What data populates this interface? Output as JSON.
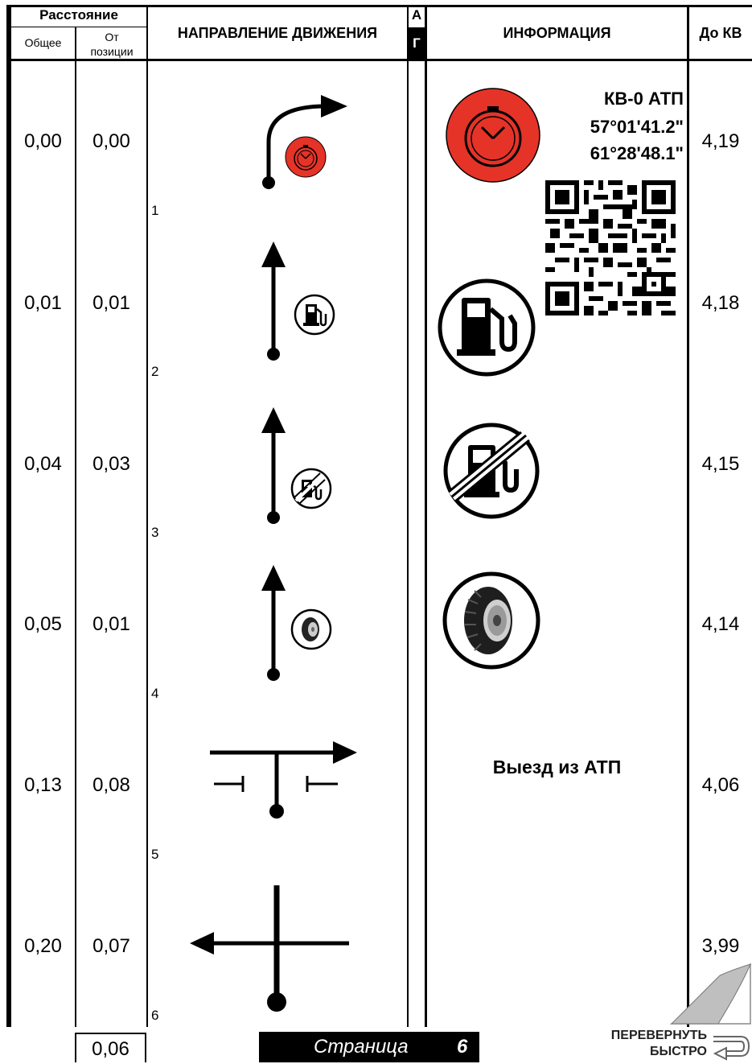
{
  "header": {
    "distance": "Расстояние",
    "total": "Общее",
    "from_position": "От позиции",
    "direction": "НАПРАВЛЕНИЕ ДВИЖЕНИЯ",
    "ag_top": "А",
    "ag_bottom": "Г",
    "info": "ИНФОРМАЦИЯ",
    "to_kv": "До КВ"
  },
  "rows": [
    {
      "n": "1",
      "total": "0,00",
      "from": "0,00",
      "to_kv": "4,19",
      "icon": "stopwatch-icon"
    },
    {
      "n": "2",
      "total": "0,01",
      "from": "0,01",
      "to_kv": "4,18",
      "icon": "fuel-pump-icon"
    },
    {
      "n": "3",
      "total": "0,04",
      "from": "0,03",
      "to_kv": "4,15",
      "icon": "no-fuel-icon"
    },
    {
      "n": "4",
      "total": "0,05",
      "from": "0,01",
      "to_kv": "4,14",
      "icon": "tire-icon"
    },
    {
      "n": "5",
      "total": "0,13",
      "from": "0,08",
      "to_kv": "4,06",
      "info": "Выезд из АТП"
    },
    {
      "n": "6",
      "total": "0,20",
      "from": "0,07",
      "to_kv": "3,99"
    }
  ],
  "checkpoint": {
    "name": "КВ-0 АТП",
    "lat": "57°01'41.2\"",
    "lon": "61°28'48.1\""
  },
  "footer": {
    "remaining": "0,06",
    "page_label": "Страница",
    "page_number": "6",
    "flip_line1": "ПЕРЕВЕРНУТЬ",
    "flip_line2": "БЫСТРО"
  }
}
